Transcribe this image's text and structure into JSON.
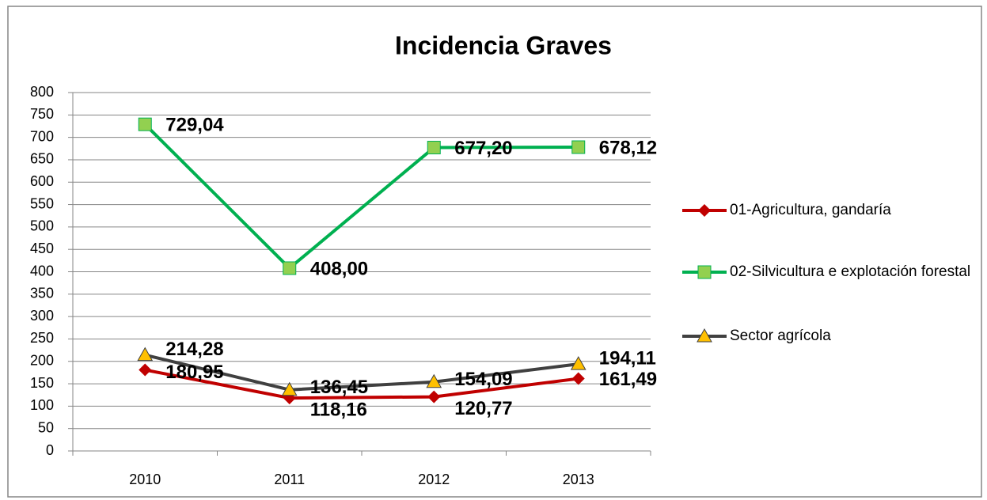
{
  "chart_data": {
    "type": "line",
    "title": "Incidencia Graves",
    "categories": [
      "2010",
      "2011",
      "2012",
      "2013"
    ],
    "series": [
      {
        "name": "01-Agricultura, gandaría",
        "color": "#c00000",
        "marker": "diamond",
        "marker_color": "#c00000",
        "values": [
          180.95,
          118.16,
          120.77,
          161.49
        ],
        "value_labels": [
          "180,95",
          "118,16",
          "120,77",
          "161,49"
        ]
      },
      {
        "name": "02-Silvicultura e explotación forestal",
        "color": "#00b050",
        "marker": "square",
        "marker_color": "#92d050",
        "values": [
          729.04,
          408.0,
          677.2,
          678.12
        ],
        "value_labels": [
          "729,04",
          "408,00",
          "677,20",
          "678,12"
        ]
      },
      {
        "name": "Sector agrícola",
        "color": "#404040",
        "marker": "triangle",
        "marker_color": "#ffc000",
        "values": [
          214.28,
          136.45,
          154.09,
          194.11
        ],
        "value_labels": [
          "214,28",
          "136,45",
          "154,09",
          "194,11"
        ]
      }
    ],
    "ylim": [
      0,
      800
    ],
    "yticks": [
      0,
      50,
      100,
      150,
      200,
      250,
      300,
      350,
      400,
      450,
      500,
      550,
      600,
      650,
      700,
      750,
      800
    ],
    "grid": true,
    "legend": "right"
  }
}
